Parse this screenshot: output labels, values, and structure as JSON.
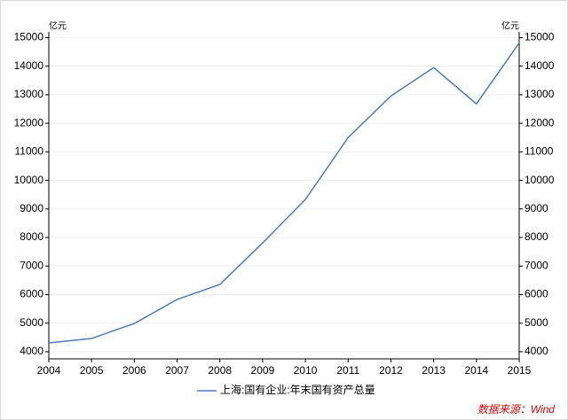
{
  "chart_data": {
    "type": "line",
    "y_unit": "亿元",
    "y2_unit": "亿元",
    "x": [
      2004,
      2005,
      2006,
      2007,
      2008,
      2009,
      2010,
      2011,
      2012,
      2013,
      2014,
      2015
    ],
    "series": [
      {
        "name": "上海:国有企业:年末国有资产总量",
        "color": "#4a7ebb",
        "values": [
          4310,
          4465,
          4990,
          5830,
          6355,
          7810,
          9330,
          11500,
          12955,
          13950,
          12680,
          14815
        ]
      }
    ],
    "xlim": [
      2004,
      2015
    ],
    "xticks": [
      2004,
      2005,
      2006,
      2007,
      2008,
      2009,
      2010,
      2011,
      2012,
      2013,
      2014,
      2015
    ],
    "ylim": [
      3750,
      15200
    ],
    "yticks": [
      4000,
      5000,
      6000,
      7000,
      8000,
      9000,
      10000,
      11000,
      12000,
      13000,
      14000,
      15000
    ],
    "y2lim": [
      3750,
      15200
    ],
    "y2ticks": [
      4000,
      5000,
      6000,
      7000,
      8000,
      9000,
      10000,
      11000,
      12000,
      13000,
      14000,
      15000
    ],
    "grid": true,
    "legend": "bottom",
    "source": "数据来源：Wind"
  }
}
